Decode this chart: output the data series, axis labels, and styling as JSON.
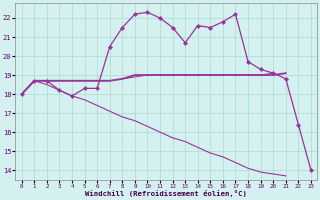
{
  "xlabel": "Windchill (Refroidissement éolien,°C)",
  "x": [
    0,
    1,
    2,
    3,
    4,
    5,
    6,
    7,
    8,
    9,
    10,
    11,
    12,
    13,
    14,
    15,
    16,
    17,
    18,
    19,
    20,
    21,
    22,
    23
  ],
  "line1": [
    18.0,
    18.7,
    18.7,
    18.2,
    17.9,
    18.3,
    18.3,
    20.5,
    21.5,
    22.2,
    22.3,
    22.0,
    21.5,
    20.7,
    21.6,
    21.5,
    21.8,
    22.2,
    19.7,
    19.3,
    19.1,
    18.8,
    16.4,
    14.0
  ],
  "line2": [
    18.0,
    18.7,
    18.7,
    18.7,
    18.7,
    18.7,
    18.7,
    18.7,
    18.8,
    19.0,
    19.0,
    19.0,
    19.0,
    19.0,
    19.0,
    19.0,
    19.0,
    19.0,
    19.0,
    19.0,
    19.0,
    19.1,
    null,
    null
  ],
  "line3": [
    18.0,
    18.7,
    18.7,
    18.7,
    18.7,
    18.7,
    18.7,
    18.7,
    18.8,
    18.9,
    19.0,
    19.0,
    19.0,
    19.0,
    19.0,
    19.0,
    19.0,
    19.0,
    19.0,
    19.0,
    19.1,
    null,
    null,
    null
  ],
  "line4": [
    18.0,
    18.7,
    18.5,
    18.2,
    17.9,
    17.7,
    17.4,
    17.1,
    16.8,
    16.6,
    16.3,
    16.0,
    15.7,
    15.5,
    15.2,
    14.9,
    14.7,
    14.4,
    14.1,
    13.9,
    13.8,
    13.7,
    null,
    null
  ],
  "bg_color": "#d4f0f0",
  "grid_color": "#aaddcc",
  "line_color": "#993399",
  "ylim": [
    13.5,
    22.8
  ],
  "yticks": [
    14,
    15,
    16,
    17,
    18,
    19,
    20,
    21,
    22
  ],
  "xticks": [
    0,
    1,
    2,
    3,
    4,
    5,
    6,
    7,
    8,
    9,
    10,
    11,
    12,
    13,
    14,
    15,
    16,
    17,
    18,
    19,
    20,
    21,
    22,
    23
  ]
}
